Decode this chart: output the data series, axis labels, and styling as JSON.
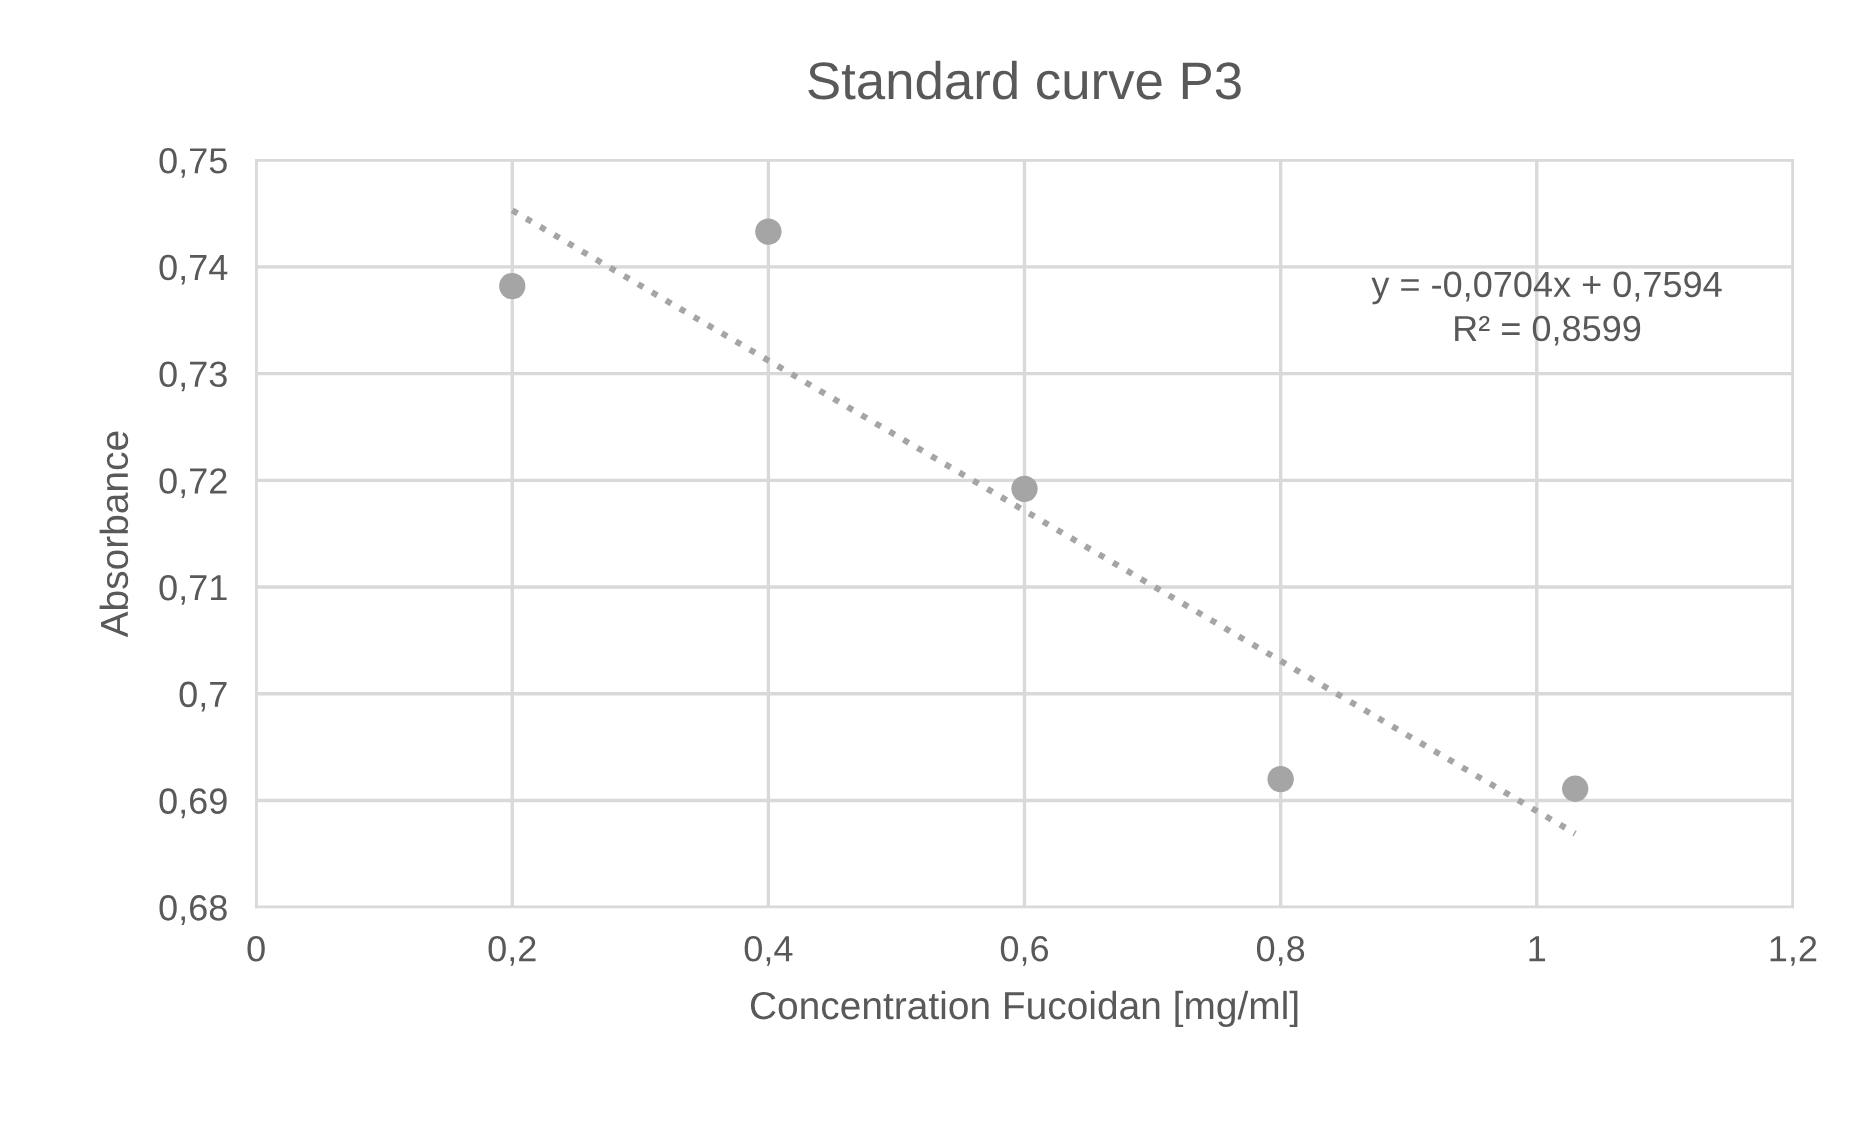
{
  "chart_data": {
    "type": "scatter",
    "title": "Standard curve P3",
    "xlabel": "Concentration Fucoidan [mg/ml]",
    "ylabel": "Absorbance",
    "x": [
      0.2,
      0.4,
      0.6,
      0.8,
      1.03
    ],
    "series": [
      {
        "color": "#a5a5a5",
        "marker": "circle",
        "values": [
          0.7382,
          0.7433,
          0.7192,
          0.692,
          0.6911
        ]
      },
      {
        "type": "line",
        "color": "#a5a5a5",
        "line_style": "dotted",
        "marker": "none",
        "x": [
          0.2,
          1.03
        ],
        "values": [
          0.7453,
          0.6869
        ]
      }
    ],
    "annotations": [
      "y = -0,0704x + 0,7594\nR² = 0,8599"
    ],
    "xlim": [
      0,
      1.2
    ],
    "ylim": [
      0.68,
      0.75
    ],
    "xticks": [
      0,
      {
        "value": 0.2,
        "label": "0,2"
      },
      {
        "value": 0.4,
        "label": "0,4"
      },
      {
        "value": 0.6,
        "label": "0,6"
      },
      {
        "value": 0.8,
        "label": "0,8"
      },
      1,
      {
        "value": 1.2,
        "label": "1,2"
      }
    ],
    "yticks": [
      {
        "value": 0.68,
        "label": "0,68"
      },
      {
        "value": 0.69,
        "label": "0,69"
      },
      {
        "value": 0.7,
        "label": "0,7"
      },
      {
        "value": 0.71,
        "label": "0,71"
      },
      {
        "value": 0.72,
        "label": "0,72"
      },
      {
        "value": 0.73,
        "label": "0,73"
      },
      {
        "value": 0.74,
        "label": "0,74"
      },
      {
        "value": 0.75,
        "label": "0,75"
      }
    ],
    "grid": true,
    "legend": false
  }
}
